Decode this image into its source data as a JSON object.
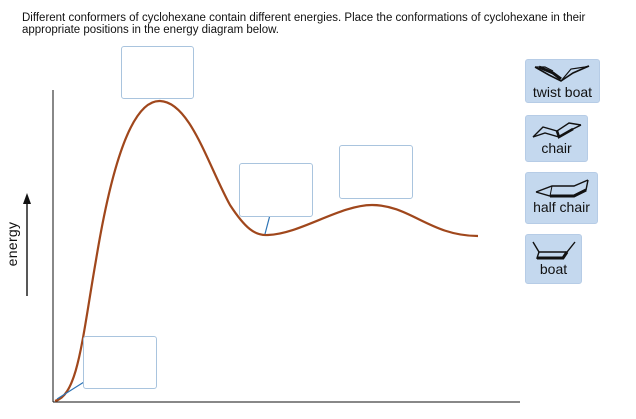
{
  "instructions": "Different conformers of cyclohexane contain different energies. Place the conformations of cyclohexane in their appropriate positions in the energy diagram below.",
  "axis": {
    "ylabel": "energy"
  },
  "colors": {
    "curve": "#a0471c",
    "axis": "#111111",
    "pointer": "#2e74b5",
    "box_border": "#a9c4de",
    "tile_bg": "#c4d8ee"
  },
  "tiles": [
    {
      "label": "twist boat",
      "icon": "twist-boat-icon"
    },
    {
      "label": "chair",
      "icon": "chair-icon"
    },
    {
      "label": "half chair",
      "icon": "half-chair-icon"
    },
    {
      "label": "boat",
      "icon": "boat-icon"
    }
  ],
  "drop_targets": [
    "top-peak",
    "mid-valley",
    "second-peak",
    "baseline"
  ]
}
